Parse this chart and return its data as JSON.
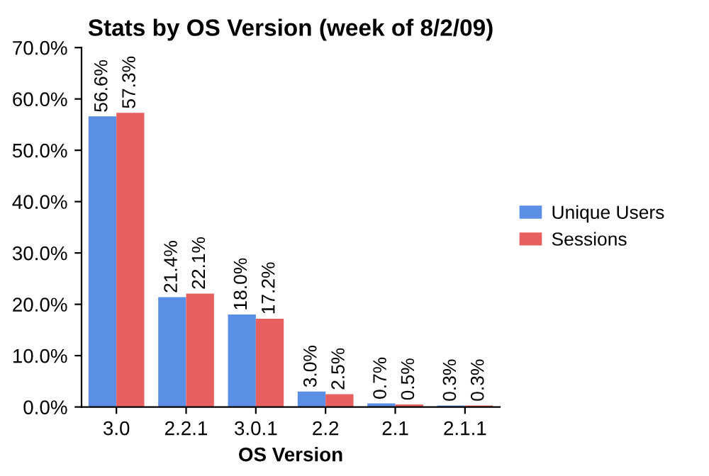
{
  "chart_data": {
    "type": "bar",
    "title": "Stats by OS Version (week of 8/2/09)",
    "xlabel": "OS Version",
    "categories": [
      "3.0",
      "2.2.1",
      "3.0.1",
      "2.2",
      "2.1",
      "2.1.1"
    ],
    "series": [
      {
        "name": "Unique Users",
        "color": "#5b8fe6",
        "values": [
          56.6,
          21.4,
          18.0,
          3.0,
          0.7,
          0.3
        ],
        "value_labels": [
          "56.6%",
          "21.4%",
          "18.0%",
          "3.0%",
          "0.7%",
          "0.3%"
        ]
      },
      {
        "name": "Sessions",
        "color": "#e85f5f",
        "values": [
          57.3,
          22.1,
          17.2,
          2.5,
          0.5,
          0.3
        ],
        "value_labels": [
          "57.3%",
          "22.1%",
          "17.2%",
          "2.5%",
          "0.5%",
          "0.3%"
        ]
      }
    ],
    "ylim": [
      0,
      70
    ],
    "yticks": [
      {
        "value": 0,
        "label": "0.0%"
      },
      {
        "value": 10,
        "label": "10.0%"
      },
      {
        "value": 20,
        "label": "20.0%"
      },
      {
        "value": 30,
        "label": "30.0%"
      },
      {
        "value": 40,
        "label": "40.0%"
      },
      {
        "value": 50,
        "label": "50.0%"
      },
      {
        "value": 60,
        "label": "60.0%"
      },
      {
        "value": 70,
        "label": "70.0%"
      }
    ],
    "legend": "right",
    "grid": false
  }
}
